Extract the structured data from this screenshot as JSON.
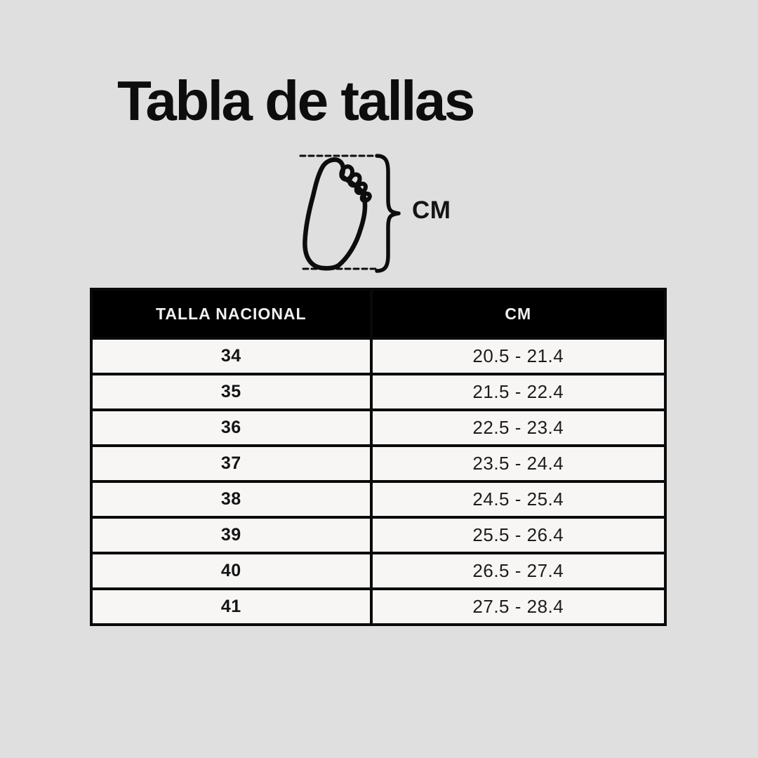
{
  "page": {
    "background_color": "#dfdfdf"
  },
  "diagram": {
    "icon": "foot-outline-icon",
    "unit_label": "CM"
  },
  "chart_data": {
    "type": "table",
    "title": "Tabla de tallas",
    "columns": [
      "TALLA NACIONAL",
      "CM"
    ],
    "rows": [
      [
        "34",
        "20.5 - 21.4"
      ],
      [
        "35",
        "21.5 - 22.4"
      ],
      [
        "36",
        "22.5 - 23.4"
      ],
      [
        "37",
        "23.5 - 24.4"
      ],
      [
        "38",
        "24.5 - 25.4"
      ],
      [
        "39",
        "25.5 - 26.4"
      ],
      [
        "40",
        "26.5 - 27.4"
      ],
      [
        "41",
        "27.5 - 28.4"
      ]
    ],
    "colors": {
      "header_bg": "#000000",
      "header_text": "#f2f1f0",
      "row_bg": "#f7f6f5",
      "border": "#0a0a0a"
    }
  }
}
